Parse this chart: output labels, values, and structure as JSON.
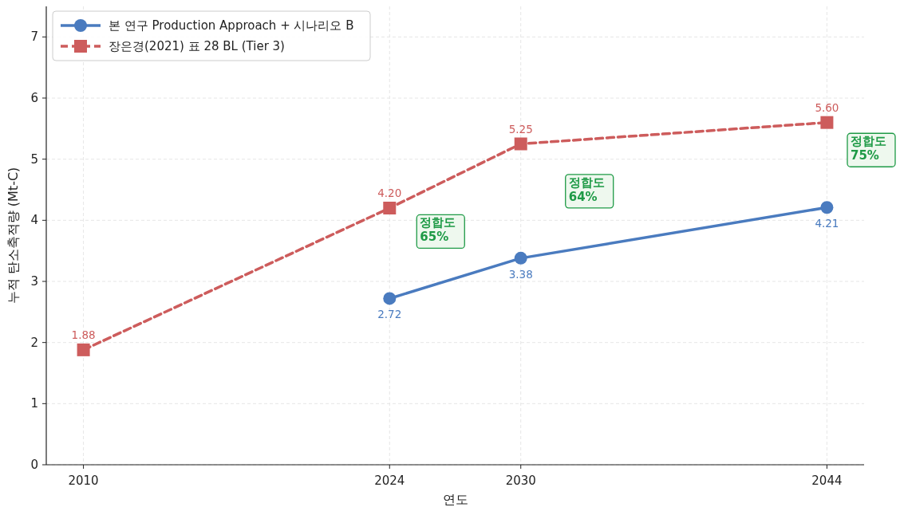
{
  "chart_data": {
    "type": "line",
    "xlabel": "연도",
    "ylabel": "누적 탄소축적량 (Mt-C)",
    "xlim": [
      2008.3,
      2045.7
    ],
    "ylim": [
      0,
      7.5
    ],
    "xticks": [
      2010,
      2024,
      2030,
      2044
    ],
    "yticks": [
      0,
      1,
      2,
      3,
      4,
      5,
      6,
      7
    ],
    "grid": true,
    "legend": "top left",
    "series": [
      {
        "name": "본 연구 Production Approach + 시나리오 B",
        "color": "#4a7bbf",
        "x": [
          2024,
          2030,
          2044
        ],
        "values": [
          2.72,
          3.38,
          4.21
        ],
        "value_labels": [
          "2.72",
          "3.38",
          "4.21"
        ],
        "marker": "circle",
        "line_style": "solid"
      },
      {
        "name": "장은경(2021) 표 28 BL (Tier 3)",
        "color": "#cd5c5c",
        "x": [
          2010,
          2024,
          2030,
          2044
        ],
        "values": [
          1.88,
          4.2,
          5.25,
          5.6
        ],
        "value_labels": [
          "1.88",
          "4.20",
          "5.25",
          "5.60"
        ],
        "marker": "square",
        "line_style": "dashed"
      }
    ],
    "annotations": [
      "정합도\n65%",
      "정합도\n64%",
      "정합도\n75%"
    ]
  }
}
